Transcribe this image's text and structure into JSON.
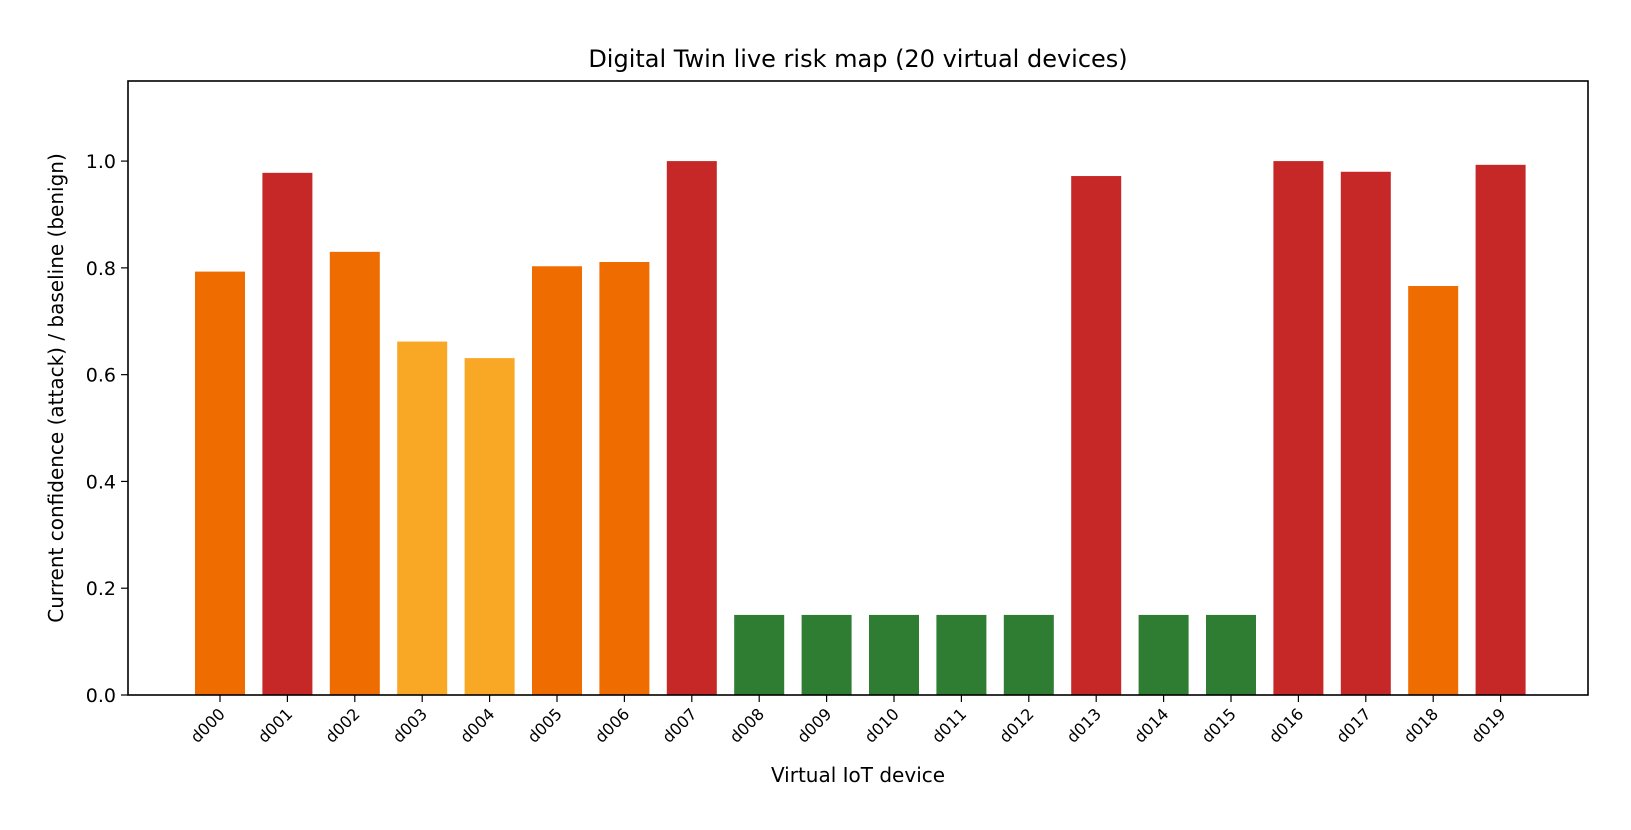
{
  "chart_data": {
    "type": "bar",
    "title": "Digital Twin live risk map (20 virtual devices)",
    "xlabel": "Virtual IoT device",
    "ylabel": "Current confidence (attack) / baseline (benign)",
    "ylim": [
      0,
      1.15
    ],
    "yticks": [
      "0.0",
      "0.2",
      "0.4",
      "0.6",
      "0.8",
      "1.0"
    ],
    "categories": [
      "d000",
      "d001",
      "d002",
      "d003",
      "d004",
      "d005",
      "d006",
      "d007",
      "d008",
      "d009",
      "d010",
      "d011",
      "d012",
      "d013",
      "d014",
      "d015",
      "d016",
      "d017",
      "d018",
      "d019"
    ],
    "values": [
      0.793,
      0.978,
      0.83,
      0.662,
      0.631,
      0.803,
      0.811,
      1.0,
      0.15,
      0.15,
      0.15,
      0.15,
      0.15,
      0.972,
      0.15,
      0.15,
      1.0,
      0.98,
      0.766,
      0.993
    ],
    "bar_colors": [
      "#ef6c00",
      "#c62828",
      "#ef6c00",
      "#f9a825",
      "#f9a825",
      "#ef6c00",
      "#ef6c00",
      "#c62828",
      "#2e7d32",
      "#2e7d32",
      "#2e7d32",
      "#2e7d32",
      "#2e7d32",
      "#c62828",
      "#2e7d32",
      "#2e7d32",
      "#c62828",
      "#c62828",
      "#ef6c00",
      "#c62828"
    ],
    "grid": false,
    "legend": "none"
  }
}
